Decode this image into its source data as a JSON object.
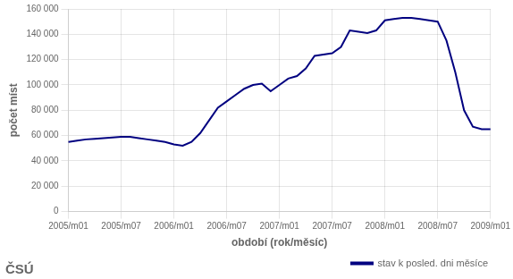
{
  "chart_data": {
    "type": "line",
    "xlabel": "období (rok/měsíc)",
    "ylabel": "počet míst",
    "categories": [
      "2005/m01",
      null,
      null,
      null,
      null,
      null,
      "2005/m07",
      null,
      null,
      null,
      null,
      null,
      "2006/m01",
      null,
      null,
      null,
      null,
      null,
      "2006/m07",
      null,
      null,
      null,
      null,
      null,
      "2007/m01",
      null,
      null,
      null,
      null,
      null,
      "2007/m07",
      null,
      null,
      null,
      null,
      null,
      "2008/m01",
      null,
      null,
      null,
      null,
      null,
      "2008/m07",
      null,
      null,
      null,
      null,
      null,
      "2009/m01"
    ],
    "series": [
      {
        "name": "stav k posled. dni měsíce",
        "color": "#000080",
        "values": [
          55000,
          56000,
          57000,
          57500,
          58000,
          58500,
          59000,
          59000,
          58000,
          57000,
          56000,
          55000,
          53000,
          52000,
          55000,
          62000,
          72000,
          82000,
          87000,
          92000,
          97000,
          100000,
          101000,
          95000,
          100000,
          105000,
          107000,
          113000,
          123000,
          124000,
          125000,
          130000,
          143000,
          142000,
          141000,
          143000,
          151000,
          152000,
          153000,
          153000,
          152000,
          151000,
          150000,
          135000,
          110000,
          80000,
          67000,
          65000,
          65000
        ]
      }
    ],
    "ylim": [
      0,
      160000
    ],
    "yticks": [
      0,
      {
        "value": 20000,
        "label": "20 000"
      },
      {
        "value": 40000,
        "label": "40 000"
      },
      {
        "value": 60000,
        "label": "60 000"
      },
      {
        "value": 80000,
        "label": "80 000"
      },
      {
        "value": 100000,
        "label": "100 000"
      },
      {
        "value": 120000,
        "label": "120 000"
      },
      {
        "value": 140000,
        "label": "140 000"
      },
      {
        "value": 160000,
        "label": "160 000"
      }
    ],
    "grid": true,
    "legend": "lower right",
    "annotations": [
      "ČSÚ"
    ]
  }
}
